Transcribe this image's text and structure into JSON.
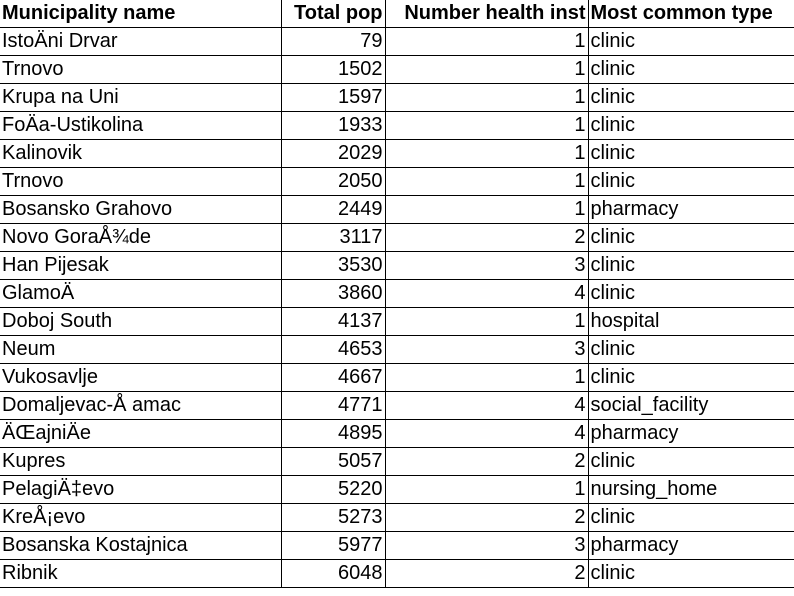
{
  "table": {
    "headers": [
      "Municipality name",
      "Total pop",
      "Number health inst",
      "Most common type"
    ],
    "rows": [
      [
        "IstoÄni Drvar",
        "79",
        "1",
        "clinic"
      ],
      [
        "Trnovo",
        "1502",
        "1",
        "clinic"
      ],
      [
        "Krupa na Uni",
        "1597",
        "1",
        "clinic"
      ],
      [
        "FoÄa-Ustikolina",
        "1933",
        "1",
        "clinic"
      ],
      [
        "Kalinovik",
        "2029",
        "1",
        "clinic"
      ],
      [
        "Trnovo",
        "2050",
        "1",
        "clinic"
      ],
      [
        "Bosansko Grahovo",
        "2449",
        "1",
        "pharmacy"
      ],
      [
        "Novo GoraÅ¾de",
        "3117",
        "2",
        "clinic"
      ],
      [
        "Han Pijesak",
        "3530",
        "3",
        "clinic"
      ],
      [
        "GlamoÄ",
        "3860",
        "4",
        "clinic"
      ],
      [
        "Doboj South",
        "4137",
        "1",
        "hospital"
      ],
      [
        "Neum",
        "4653",
        "3",
        "clinic"
      ],
      [
        "Vukosavlje",
        "4667",
        "1",
        "clinic"
      ],
      [
        "Domaljevac-Å amac",
        "4771",
        "4",
        "social_facility"
      ],
      [
        "ÄŒajniÄe",
        "4895",
        "4",
        "pharmacy"
      ],
      [
        "Kupres",
        "5057",
        "2",
        "clinic"
      ],
      [
        "PelagiÄ‡evo",
        "5220",
        "1",
        "nursing_home"
      ],
      [
        "KreÅ¡evo",
        "5273",
        "2",
        "clinic"
      ],
      [
        "Bosanska Kostajnica",
        "5977",
        "3",
        "pharmacy"
      ],
      [
        "Ribnik",
        "6048",
        "2",
        "clinic"
      ]
    ]
  }
}
